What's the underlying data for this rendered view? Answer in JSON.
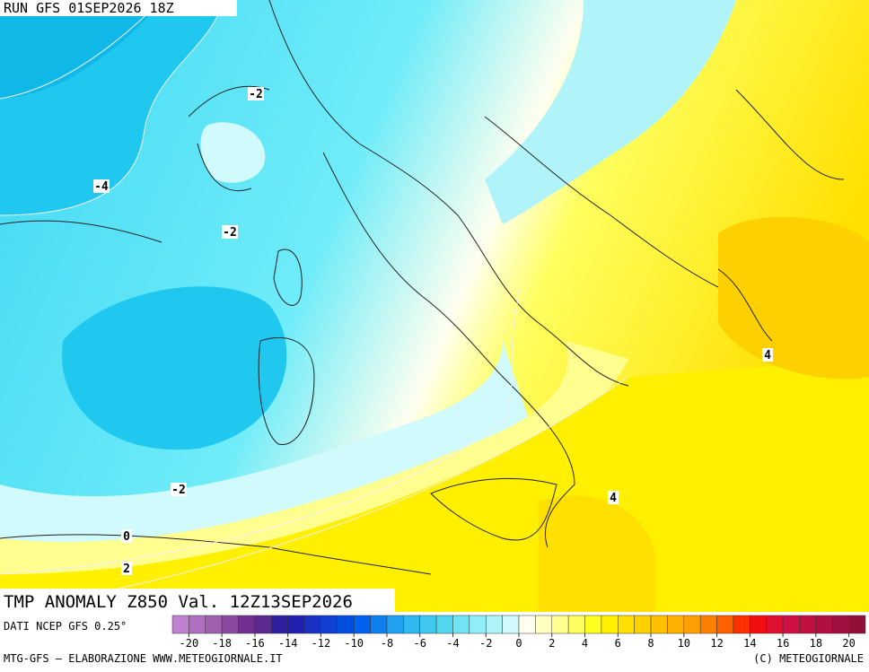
{
  "header": {
    "run": "RUN GFS 01SEP2026 18Z"
  },
  "map": {
    "contour_labels": [
      "-2",
      "-4",
      "-2",
      "-2",
      "0",
      "2",
      "4",
      "4"
    ]
  },
  "title": "TMP ANOMALY Z850 Val. 12Z13SEP2026",
  "source": "DATI NCEP GFS 0.25°",
  "legend": {
    "ticks": [
      -20,
      -18,
      -16,
      -14,
      -12,
      -10,
      -8,
      -6,
      -4,
      -2,
      0,
      2,
      4,
      6,
      8,
      10,
      12,
      14,
      16,
      18,
      20
    ],
    "colors": [
      "#c080d0",
      "#b070c0",
      "#a060b0",
      "#8a4aa0",
      "#703090",
      "#5a2a90",
      "#3020a0",
      "#2020b0",
      "#1a30c0",
      "#1040d0",
      "#0050e0",
      "#0060f0",
      "#1080f0",
      "#20a0f0",
      "#30b8f0",
      "#40c8f0",
      "#50d8f0",
      "#70e4f4",
      "#90eef8",
      "#b0f4fa",
      "#d0fafc",
      "#fffff0",
      "#ffffc0",
      "#ffff90",
      "#ffff60",
      "#ffff20",
      "#fff000",
      "#ffe000",
      "#ffd000",
      "#ffc000",
      "#ffb000",
      "#ffa000",
      "#ff8000",
      "#ff6000",
      "#ff3000",
      "#f01010",
      "#e01030",
      "#d01040",
      "#c01040",
      "#b01040",
      "#a01040",
      "#901038"
    ]
  },
  "footer": {
    "left": "MTG-GFS – ELABORAZIONE WWW.METEOGIORNALE.IT",
    "right": "(C) METEOGIORNALE"
  }
}
